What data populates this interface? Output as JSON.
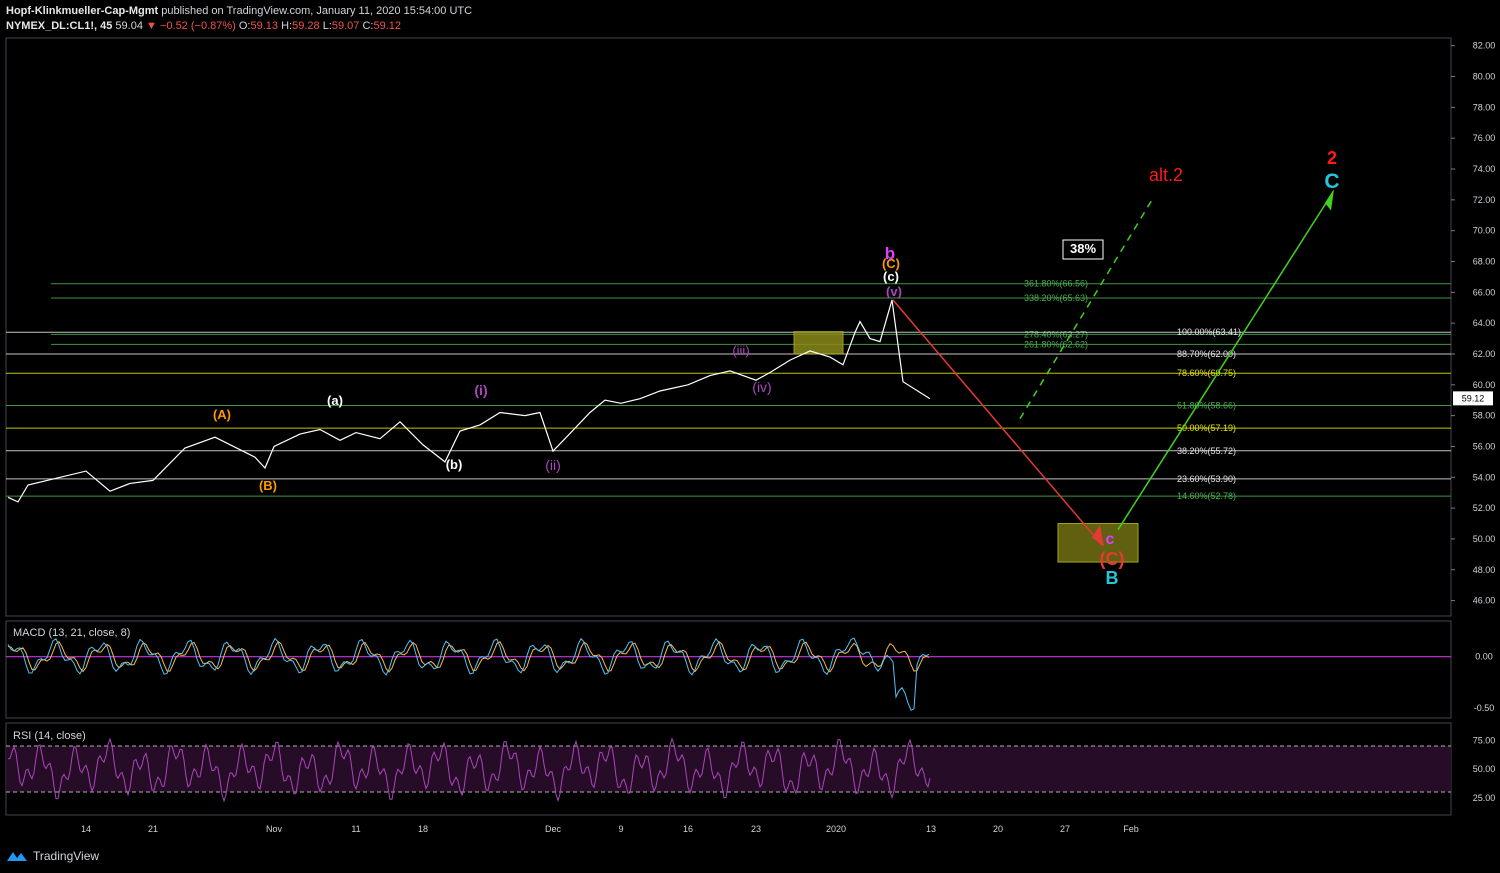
{
  "header": {
    "author": "Hopf-Klinkmueller-Cap-Mgmt",
    "published": "published on TradingView.com, January 11, 2020 15:54:00 UTC",
    "symbol": "NYMEX_DL:CL1!, 45",
    "last": "59.04",
    "change": "−0.52 (−0.87%)",
    "o_label": "O:",
    "o": "59.13",
    "h_label": "H:",
    "h": "59.28",
    "l_label": "L:",
    "l": "59.07",
    "c_label": "C:",
    "c": "59.12"
  },
  "footer": {
    "brand": "TradingView"
  },
  "colors": {
    "background": "#000000",
    "price": "#ffffff",
    "fib_green": "#4caf50",
    "fib_yellow": "#e6e600",
    "fib_white": "#e6e6e6",
    "macd": "#4fc3f7",
    "signal": "#ffb74d",
    "rsi": "#ab47bc",
    "arrow_down": "#e53935",
    "arrow_up": "#43d11f"
  },
  "chart_data": [
    {
      "type": "line",
      "series": [
        {
          "x": [
            "Oct 8",
            "Oct 10",
            "Oct 12",
            "Oct 14",
            "Oct 16",
            "Oct 18",
            "Oct 21",
            "Oct 23",
            "Oct 25",
            "Oct 28",
            "Oct 30",
            "Nov 1",
            "Nov 4",
            "Nov 6",
            "Nov 8",
            "Nov 11",
            "Nov 13",
            "Nov 15",
            "Nov 18",
            "Nov 19",
            "Nov 20",
            "Nov 22",
            "Nov 25",
            "Nov 27",
            "Nov 29",
            "Dec 2",
            "Dec 3",
            "Dec 5",
            "Dec 6",
            "Dec 9",
            "Dec 11",
            "Dec 13",
            "Dec 16",
            "Dec 18",
            "Dec 20",
            "Dec 23",
            "Dec 24",
            "Dec 26",
            "Dec 27",
            "Dec 30",
            "Jan 2",
            "Jan 3",
            "Jan 5",
            "Jan 6",
            "Jan 7",
            "Jan 8",
            "Jan 9",
            "Jan 10"
          ],
          "values": [
            52.7,
            52.4,
            53.5,
            54.4,
            53.1,
            53.6,
            53.8,
            55.9,
            56.6,
            55.3,
            54.6,
            56.0,
            56.8,
            57.1,
            56.4,
            56.9,
            56.5,
            57.6,
            56.1,
            55.0,
            57.0,
            57.4,
            58.2,
            58.0,
            58.2,
            55.7,
            56.5,
            58.2,
            59.0,
            58.8,
            59.1,
            59.6,
            60.0,
            60.6,
            60.9,
            60.3,
            60.8,
            61.6,
            62.2,
            61.8,
            61.3,
            63.4,
            64.1,
            63.0,
            62.8,
            65.5,
            60.2,
            59.1
          ]
        }
      ],
      "ylim": [
        45.0,
        82.5
      ],
      "yticks": [
        "82.00",
        "80.00",
        "78.00",
        "76.00",
        "74.00",
        "72.00",
        "70.00",
        "68.00",
        "66.00",
        "64.00",
        "62.00",
        "60.00",
        "58.00",
        "56.00",
        "54.00",
        "52.00",
        "50.00",
        "48.00",
        "46.00"
      ],
      "xticks": [
        "14",
        "21",
        "Nov",
        "11",
        "18",
        "Dec",
        "9",
        "16",
        "23",
        "2020",
        "13",
        "20",
        "27",
        "Feb"
      ],
      "price_label": "59.12",
      "fib_levels": [
        {
          "label": "361.80%(66.56)",
          "value": 66.56,
          "color": "#4caf50"
        },
        {
          "label": "338.20%(65.63)",
          "value": 65.63,
          "color": "#4caf50"
        },
        {
          "label": "278.40%(63.27)",
          "value": 63.27,
          "color": "#4caf50"
        },
        {
          "label": "261.80%(62.62)",
          "value": 62.62,
          "color": "#4caf50"
        },
        {
          "label": "100.00%(63.41)",
          "value": 63.41,
          "color": "#e6e6e6"
        },
        {
          "label": "88.70%(62.00)",
          "value": 62.0,
          "color": "#e6e6e6"
        },
        {
          "label": "78.60%(60.75)",
          "value": 60.75,
          "color": "#e6e600"
        },
        {
          "label": "61.80%(58.66)",
          "value": 58.66,
          "color": "#4caf50"
        },
        {
          "label": "50.00%(57.19)",
          "value": 57.19,
          "color": "#e6e600"
        },
        {
          "label": "38.20%(55.72)",
          "value": 55.72,
          "color": "#e6e6e6"
        },
        {
          "label": "23.60%(53.90)",
          "value": 53.9,
          "color": "#e6e6e6"
        },
        {
          "label": "14.60%(52.78)",
          "value": 52.78,
          "color": "#4caf50"
        }
      ],
      "wave_labels": [
        {
          "text": "(A)",
          "color": "#ff9800"
        },
        {
          "text": "(B)",
          "color": "#ff9800"
        },
        {
          "text": "(a)",
          "color": "#ffffff"
        },
        {
          "text": "(b)",
          "color": "#ffffff"
        },
        {
          "text": "(i)",
          "color": "#ab47bc"
        },
        {
          "text": "(ii)",
          "color": "#ab47bc"
        },
        {
          "text": "(iii)",
          "color": "#ab47bc"
        },
        {
          "text": "(iv)",
          "color": "#ab47bc"
        },
        {
          "text": "(v)",
          "color": "#ab47bc"
        },
        {
          "text": "(c)",
          "color": "#ffffff"
        },
        {
          "text": "(C)",
          "color": "#ff9800"
        },
        {
          "text": "b",
          "color": "#e040fb"
        },
        {
          "text": "c",
          "color": "#e040fb"
        },
        {
          "text": "(C)",
          "color": "#e53935"
        },
        {
          "text": "B",
          "color": "#26c6da"
        },
        {
          "text": "alt.2",
          "color": "#ff1a1a"
        },
        {
          "text": "2",
          "color": "#ff1a1a"
        },
        {
          "text": "C",
          "color": "#26c6da"
        },
        {
          "text": "38%",
          "color": "#ffffff"
        }
      ]
    },
    {
      "type": "line",
      "title": "MACD (13, 21, close, 8)",
      "yticks": [
        "0.00",
        "-0.50"
      ],
      "ylim": [
        -0.6,
        0.35
      ]
    },
    {
      "type": "line",
      "title": "RSI (14, close)",
      "yticks": [
        "75.00",
        "50.00",
        "25.00"
      ],
      "ylim": [
        10,
        90
      ]
    }
  ]
}
